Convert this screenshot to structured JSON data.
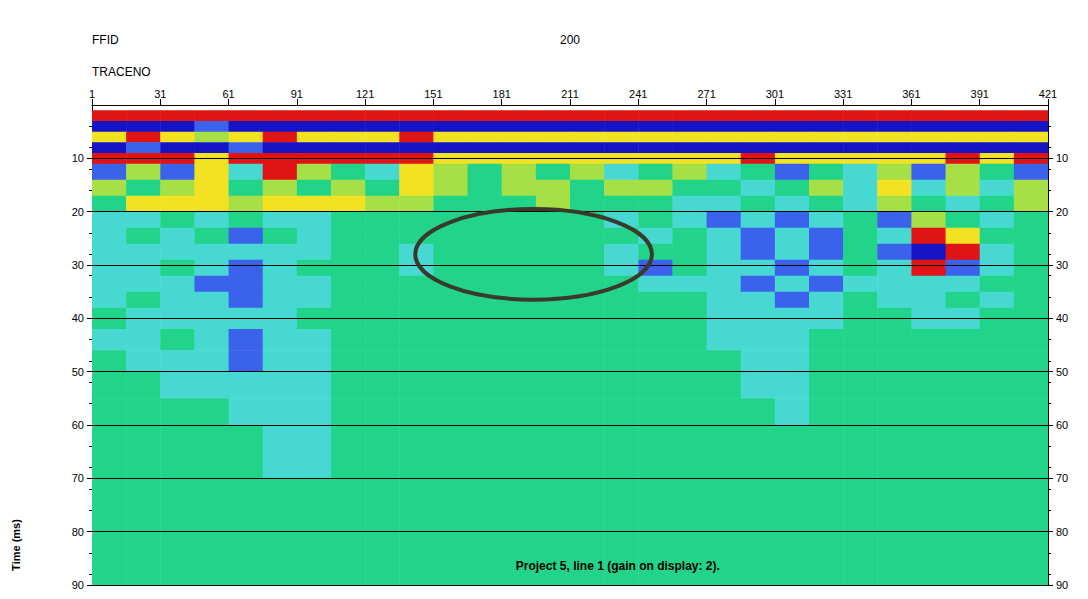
{
  "chart_data": {
    "type": "seismic_section",
    "header": {
      "ffid_label": "FFID",
      "ffid": 200,
      "trace_label": "TRACENO"
    },
    "ylabel": "Time (ms)",
    "xlim": [
      1,
      421
    ],
    "xticks": [
      1,
      31,
      61,
      91,
      121,
      151,
      181,
      211,
      241,
      271,
      301,
      331,
      361,
      391,
      421
    ],
    "ylim": [
      0,
      90
    ],
    "yticks": [
      10,
      20,
      30,
      40,
      50,
      60,
      70,
      80,
      90
    ],
    "grid": true,
    "amplitude_range": [
      -3,
      3
    ],
    "x_edges": [
      1,
      16,
      31,
      46,
      61,
      76,
      91,
      106,
      121,
      136,
      151,
      166,
      181,
      196,
      211,
      226,
      241,
      256,
      271,
      286,
      301,
      316,
      331,
      346,
      361,
      376,
      391,
      406,
      421
    ],
    "t_edges": [
      1,
      3,
      5,
      7,
      9,
      11,
      14,
      17,
      20,
      23,
      26,
      29,
      32,
      35,
      38,
      42,
      46,
      50,
      55,
      60,
      70,
      80,
      90
    ],
    "amplitude": [
      [
        3,
        3,
        3,
        3,
        3,
        3,
        3,
        3,
        3,
        3,
        3,
        3,
        3,
        3,
        3,
        3,
        3,
        3,
        3,
        3,
        3,
        3,
        3,
        3,
        3,
        3,
        3,
        3
      ],
      [
        -3,
        -3,
        -3,
        -2,
        -3,
        -3,
        -3,
        -3,
        -3,
        -3,
        -3,
        -3,
        -3,
        -3,
        -3,
        -3,
        -3,
        -3,
        -3,
        -3,
        -3,
        -3,
        -3,
        -3,
        -3,
        -3,
        -3,
        -3
      ],
      [
        2,
        3,
        2,
        1,
        2,
        3,
        2,
        2,
        2,
        3,
        2,
        2,
        2,
        2,
        2,
        2,
        2,
        2,
        2,
        2,
        2,
        2,
        2,
        2,
        2,
        2,
        2,
        2
      ],
      [
        -3,
        -2,
        -3,
        -3,
        -2,
        -3,
        -3,
        -3,
        -3,
        -3,
        -3,
        -3,
        -3,
        -3,
        -3,
        -3,
        -3,
        -3,
        -3,
        -3,
        -3,
        -3,
        -3,
        -3,
        -3,
        -3,
        -3,
        -3
      ],
      [
        3,
        3,
        3,
        2,
        3,
        3,
        3,
        3,
        3,
        3,
        2,
        2,
        2,
        2,
        2,
        2,
        2,
        2,
        2,
        3,
        2,
        2,
        2,
        2,
        2,
        3,
        2,
        3
      ],
      [
        -2,
        1,
        -2,
        2,
        -1,
        3,
        1,
        0,
        -1,
        2,
        1,
        0,
        1,
        0,
        1,
        -1,
        0,
        1,
        -1,
        0,
        -2,
        0,
        -1,
        1,
        -2,
        1,
        0,
        -2
      ],
      [
        1,
        0,
        1,
        2,
        0,
        1,
        0,
        1,
        0,
        2,
        1,
        0,
        1,
        1,
        0,
        1,
        1,
        0,
        0,
        -1,
        0,
        1,
        -1,
        2,
        -1,
        1,
        -1,
        1
      ],
      [
        0,
        2,
        2,
        2,
        1,
        2,
        2,
        2,
        1,
        1,
        0,
        0,
        0,
        1,
        0,
        0,
        0,
        -1,
        -1,
        0,
        -1,
        0,
        -1,
        1,
        0,
        -1,
        0,
        1
      ],
      [
        -1,
        -1,
        0,
        -1,
        0,
        -1,
        -1,
        0,
        0,
        0,
        0,
        0,
        0,
        0,
        0,
        -1,
        0,
        -1,
        -2,
        -1,
        -2,
        -1,
        0,
        -2,
        1,
        0,
        -1,
        0
      ],
      [
        -1,
        0,
        -1,
        0,
        -2,
        0,
        -1,
        0,
        0,
        0,
        0,
        0,
        0,
        0,
        0,
        0,
        -1,
        0,
        -1,
        -2,
        -1,
        -2,
        0,
        -1,
        3,
        2,
        0,
        0
      ],
      [
        -1,
        -1,
        -1,
        -1,
        -1,
        -1,
        -1,
        0,
        0,
        -1,
        0,
        0,
        0,
        0,
        0,
        -1,
        0,
        0,
        -1,
        -2,
        -1,
        -2,
        0,
        -2,
        -3,
        3,
        -1,
        0
      ],
      [
        -1,
        -1,
        0,
        -1,
        -2,
        -1,
        0,
        0,
        0,
        -1,
        0,
        0,
        0,
        0,
        0,
        -1,
        -2,
        0,
        -1,
        -1,
        -2,
        -1,
        0,
        -1,
        3,
        -2,
        -1,
        0
      ],
      [
        -1,
        -1,
        -1,
        -2,
        -2,
        -1,
        -1,
        0,
        0,
        0,
        0,
        0,
        0,
        0,
        0,
        0,
        -1,
        -1,
        -1,
        -2,
        -1,
        -2,
        -1,
        -1,
        -1,
        -1,
        0,
        0
      ],
      [
        -1,
        0,
        -1,
        -1,
        -2,
        -1,
        -1,
        0,
        0,
        0,
        0,
        0,
        0,
        0,
        0,
        0,
        0,
        0,
        -1,
        -1,
        -2,
        -1,
        0,
        -1,
        -1,
        0,
        -1,
        0
      ],
      [
        0,
        -1,
        -1,
        -1,
        -1,
        -1,
        0,
        0,
        0,
        0,
        0,
        0,
        0,
        0,
        0,
        0,
        0,
        0,
        -1,
        -1,
        -1,
        -1,
        0,
        0,
        -1,
        -1,
        0,
        0
      ],
      [
        -1,
        -1,
        0,
        -1,
        -2,
        -1,
        -1,
        0,
        0,
        0,
        0,
        0,
        0,
        0,
        0,
        0,
        0,
        0,
        -1,
        -1,
        -1,
        0,
        0,
        0,
        0,
        0,
        0,
        0
      ],
      [
        0,
        -1,
        -1,
        -1,
        -2,
        -1,
        -1,
        0,
        0,
        0,
        0,
        0,
        0,
        0,
        0,
        0,
        0,
        0,
        0,
        -1,
        -1,
        0,
        0,
        0,
        0,
        0,
        0,
        0
      ],
      [
        0,
        0,
        -1,
        -1,
        -1,
        -1,
        -1,
        0,
        0,
        0,
        0,
        0,
        0,
        0,
        0,
        0,
        0,
        0,
        0,
        -1,
        -1,
        0,
        0,
        0,
        0,
        0,
        0,
        0
      ],
      [
        0,
        0,
        0,
        0,
        -1,
        -1,
        -1,
        0,
        0,
        0,
        0,
        0,
        0,
        0,
        0,
        0,
        0,
        0,
        0,
        0,
        -1,
        0,
        0,
        0,
        0,
        0,
        0,
        0
      ],
      [
        0,
        0,
        0,
        0,
        0,
        -1,
        -1,
        0,
        0,
        0,
        0,
        0,
        0,
        0,
        0,
        0,
        0,
        0,
        0,
        0,
        0,
        0,
        0,
        0,
        0,
        0,
        0,
        0
      ],
      [
        0,
        0,
        0,
        0,
        0,
        0,
        0,
        0,
        0,
        0,
        0,
        0,
        0,
        0,
        0,
        0,
        0,
        0,
        0,
        0,
        0,
        0,
        0,
        0,
        0,
        0,
        0,
        0
      ],
      [
        0,
        0,
        0,
        0,
        0,
        0,
        0,
        0,
        0,
        0,
        0,
        0,
        0,
        0,
        0,
        0,
        0,
        0,
        0,
        0,
        0,
        0,
        0,
        0,
        0,
        0,
        0,
        0
      ]
    ],
    "annotations": [
      {
        "text": "Project 5, line 1 (gain on display: 2).",
        "x": 232,
        "y": 86.5
      }
    ],
    "highlight_ellipse": {
      "x": [
        143,
        247
      ],
      "y": [
        19.5,
        36.5
      ]
    }
  }
}
